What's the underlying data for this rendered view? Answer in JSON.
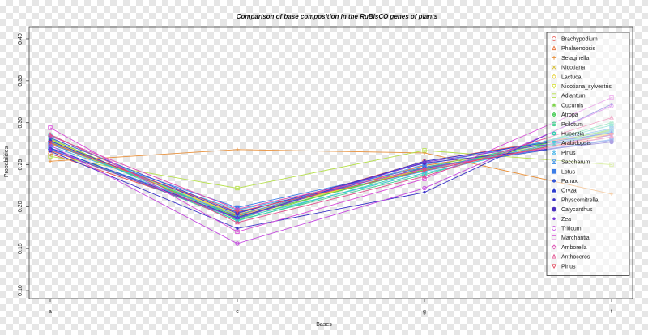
{
  "chart_data": {
    "type": "line",
    "title": "Comparison of base composition in the RuBisCO genes of plants",
    "xlabel": "Bases",
    "ylabel": "Probabilities",
    "categories": [
      "a",
      "c",
      "g",
      "t"
    ],
    "ylim": [
      0.1,
      0.4
    ],
    "yticks": [
      "0.10",
      "0.15",
      "0.20",
      "0.25",
      "0.30",
      "0.35",
      "0.40"
    ],
    "legend_position": "top-right",
    "grid": false,
    "series": [
      {
        "name": "Brachypodium",
        "color": "#e8554e",
        "marker": "circle-open",
        "values": [
          0.263,
          0.189,
          0.254,
          0.29
        ]
      },
      {
        "name": "Phalaenopsis",
        "color": "#e8733a",
        "marker": "triangle-open",
        "values": [
          0.267,
          0.188,
          0.249,
          0.283
        ]
      },
      {
        "name": "Selaginella",
        "color": "#e8903a",
        "marker": "plus",
        "values": [
          0.254,
          0.268,
          0.264,
          0.215
        ]
      },
      {
        "name": "Nicotiana",
        "color": "#d9c23a",
        "marker": "cross",
        "values": [
          0.275,
          0.19,
          0.245,
          0.288
        ]
      },
      {
        "name": "Lactuca",
        "color": "#e6d23a",
        "marker": "diamond-open",
        "values": [
          0.28,
          0.187,
          0.246,
          0.287
        ]
      },
      {
        "name": "Nicotiana_sylvestris",
        "color": "#d8e040",
        "marker": "triangle-down-open",
        "values": [
          0.276,
          0.191,
          0.244,
          0.289
        ]
      },
      {
        "name": "Adiantum",
        "color": "#b6e04a",
        "marker": "square-open",
        "values": [
          0.26,
          0.222,
          0.267,
          0.25
        ]
      },
      {
        "name": "Cucumis",
        "color": "#7dd44a",
        "marker": "star",
        "values": [
          0.281,
          0.185,
          0.247,
          0.291
        ]
      },
      {
        "name": "Atropa",
        "color": "#4ccd5a",
        "marker": "diamond-plus",
        "values": [
          0.277,
          0.188,
          0.244,
          0.292
        ]
      },
      {
        "name": "Psilotum",
        "color": "#3fcf8c",
        "marker": "circle-plus",
        "values": [
          0.27,
          0.184,
          0.238,
          0.3
        ]
      },
      {
        "name": "Huperzia",
        "color": "#35cfb0",
        "marker": "triangle-up-down",
        "values": [
          0.279,
          0.183,
          0.243,
          0.297
        ]
      },
      {
        "name": "Arabidopsis",
        "color": "#3ac8d6",
        "marker": "square-plus",
        "values": [
          0.285,
          0.186,
          0.24,
          0.289
        ]
      },
      {
        "name": "Pinus",
        "color": "#42b2e6",
        "marker": "circle-cross",
        "values": [
          0.272,
          0.196,
          0.242,
          0.29
        ]
      },
      {
        "name": "Saccharum",
        "color": "#4d9ae8",
        "marker": "square-x",
        "values": [
          0.269,
          0.19,
          0.25,
          0.293
        ]
      },
      {
        "name": "Lotus",
        "color": "#3d7ee8",
        "marker": "square",
        "values": [
          0.274,
          0.199,
          0.247,
          0.28
        ]
      },
      {
        "name": "Panax",
        "color": "#3656d6",
        "marker": "circle-small",
        "values": [
          0.282,
          0.193,
          0.246,
          0.279
        ]
      },
      {
        "name": "Oryza",
        "color": "#2f3ed0",
        "marker": "triangle",
        "values": [
          0.27,
          0.187,
          0.254,
          0.288
        ]
      },
      {
        "name": "Physcomitrella",
        "color": "#3a33c8",
        "marker": "dot",
        "values": [
          0.266,
          0.174,
          0.217,
          0.322
        ]
      },
      {
        "name": "Calycanthus",
        "color": "#4a2fc0",
        "marker": "circle",
        "values": [
          0.278,
          0.192,
          0.252,
          0.277
        ]
      },
      {
        "name": "Zea",
        "color": "#7a3ad8",
        "marker": "dot",
        "values": [
          0.268,
          0.186,
          0.253,
          0.285
        ]
      },
      {
        "name": "Triticum",
        "color": "#c448e0",
        "marker": "circle-open",
        "values": [
          0.273,
          0.156,
          0.222,
          0.32
        ]
      },
      {
        "name": "Marchantia",
        "color": "#d84bd8",
        "marker": "square-open",
        "values": [
          0.294,
          0.17,
          0.233,
          0.33
        ]
      },
      {
        "name": "Amborella",
        "color": "#e04cb4",
        "marker": "diamond-open",
        "values": [
          0.284,
          0.197,
          0.245,
          0.283
        ]
      },
      {
        "name": "Anthoceros",
        "color": "#e04d8c",
        "marker": "triangle-open",
        "values": [
          0.286,
          0.181,
          0.236,
          0.306
        ]
      },
      {
        "name": "Pinus",
        "color": "#e24d62",
        "marker": "triangle-down-open",
        "values": [
          0.276,
          0.194,
          0.243,
          0.286
        ]
      }
    ]
  }
}
